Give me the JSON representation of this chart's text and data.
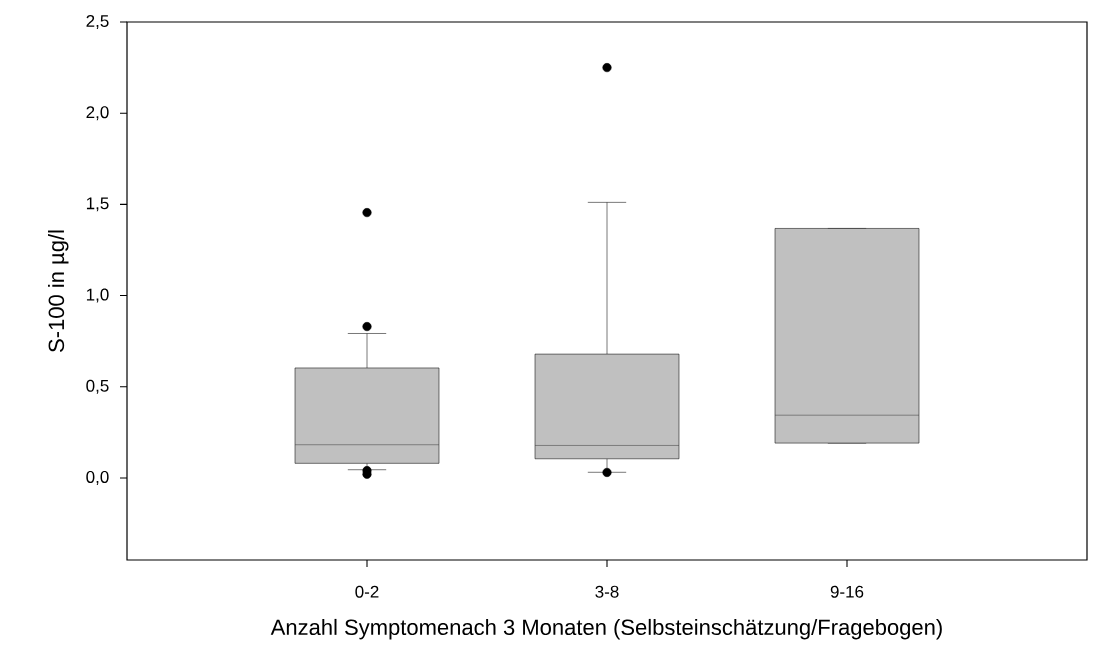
{
  "chart_data": {
    "type": "box",
    "xlabel": "Anzahl Symptomenach 3 Monaten (Selbsteinschätzung/Fragebogen)",
    "ylabel": "S-100 in µg/l",
    "categories": [
      "0-2",
      "3-8",
      "9-16"
    ],
    "color": "#c0c0c0",
    "boxes": [
      {
        "low": 0.045,
        "q1": 0.08,
        "median": 0.182,
        "q3": 0.603,
        "high": 0.792,
        "outliers": [
          1.455,
          0.83,
          0.04,
          0.02
        ]
      },
      {
        "low": 0.031,
        "q1": 0.105,
        "median": 0.178,
        "q3": 0.679,
        "high": 1.511,
        "outliers": [
          2.25,
          0.03
        ]
      },
      {
        "low": 0.191,
        "q1": 0.191,
        "median": 0.344,
        "q3": 1.368,
        "high": 1.368
      }
    ],
    "ylim": [
      -0.45,
      2.5
    ],
    "yticks": [
      {
        "value": 0,
        "label": "0,0"
      },
      {
        "value": 0.5,
        "label": "0,5"
      },
      {
        "value": 1,
        "label": "1,0"
      },
      {
        "value": 1.5,
        "label": "1,5"
      },
      {
        "value": 2,
        "label": "2,0"
      },
      {
        "value": 2.5,
        "label": "2,5"
      }
    ],
    "grid": false
  }
}
